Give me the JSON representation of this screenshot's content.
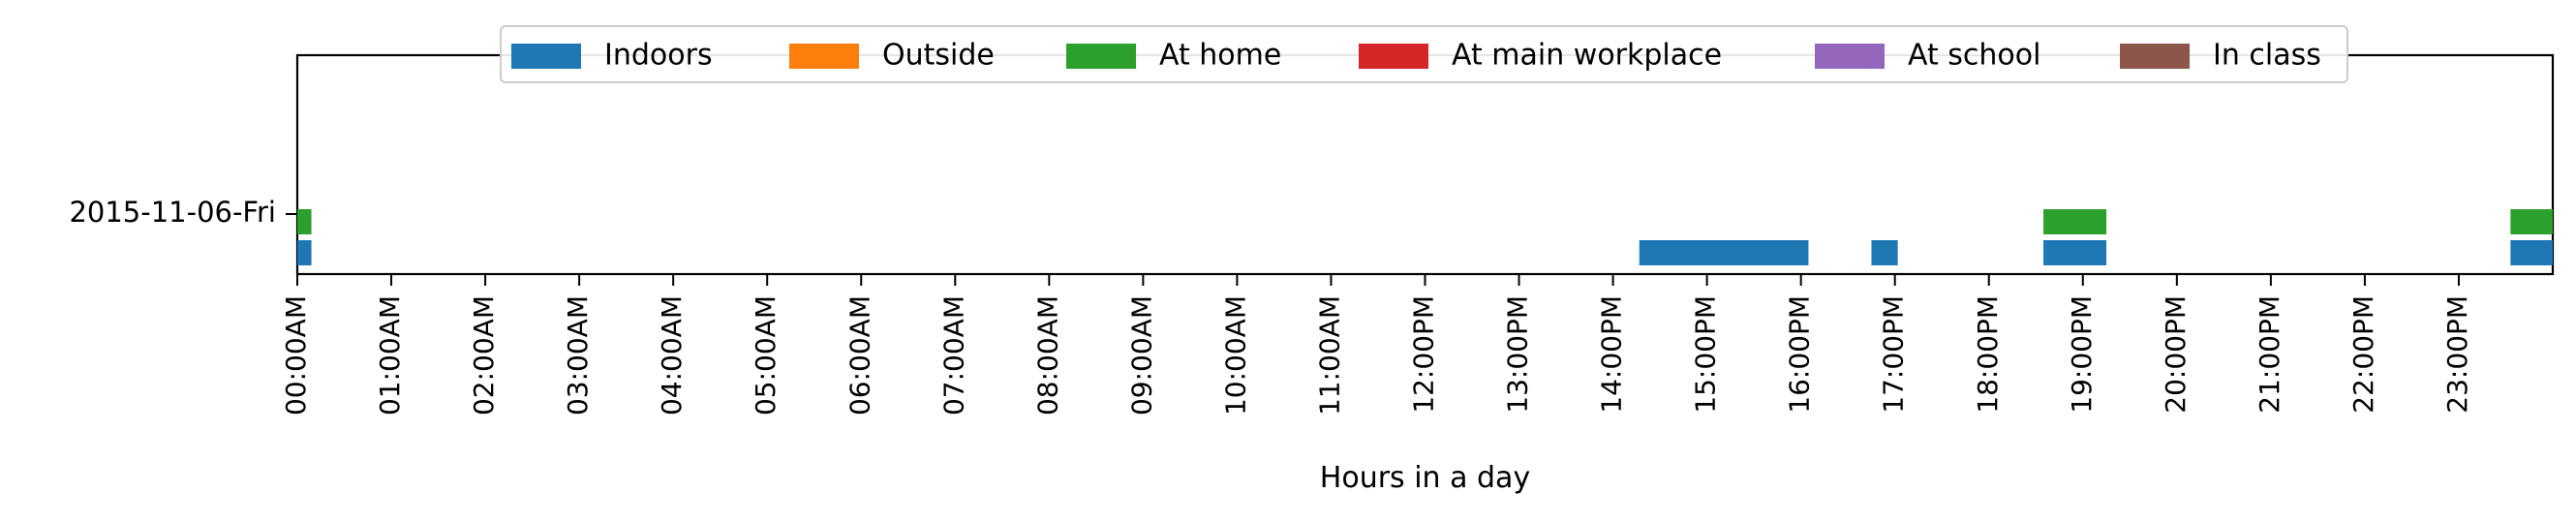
{
  "chart_data": {
    "type": "timeline",
    "xlabel": "Hours in a day",
    "ylabel": "",
    "xlim": [
      0,
      24
    ],
    "x_ticks": [
      "00:00AM",
      "01:00AM",
      "02:00AM",
      "03:00AM",
      "04:00AM",
      "05:00AM",
      "06:00AM",
      "07:00AM",
      "08:00AM",
      "09:00AM",
      "10:00AM",
      "11:00AM",
      "12:00PM",
      "13:00PM",
      "14:00PM",
      "15:00PM",
      "16:00PM",
      "17:00PM",
      "18:00PM",
      "19:00PM",
      "20:00PM",
      "21:00PM",
      "22:00PM",
      "23:00PM"
    ],
    "days": [
      "2015-11-06-Fri"
    ],
    "legend_position": "top-center",
    "grid": false,
    "series": [
      {
        "name": "Indoors",
        "color": "#1f77b4",
        "intervals": [
          [
            0.0,
            0.15
          ],
          [
            14.28,
            16.08
          ],
          [
            16.75,
            17.03
          ],
          [
            18.58,
            19.25
          ],
          [
            23.55,
            24.0
          ]
        ]
      },
      {
        "name": "Outside",
        "color": "#ff7f0e",
        "intervals": []
      },
      {
        "name": "At home",
        "color": "#2ca02c",
        "intervals": [
          [
            0.0,
            0.15
          ],
          [
            18.58,
            19.25
          ],
          [
            23.55,
            24.0
          ]
        ]
      },
      {
        "name": "At main workplace",
        "color": "#d62728",
        "intervals": []
      },
      {
        "name": "At school",
        "color": "#9467bd",
        "intervals": []
      },
      {
        "name": "In class",
        "color": "#8c564b",
        "intervals": []
      }
    ]
  }
}
